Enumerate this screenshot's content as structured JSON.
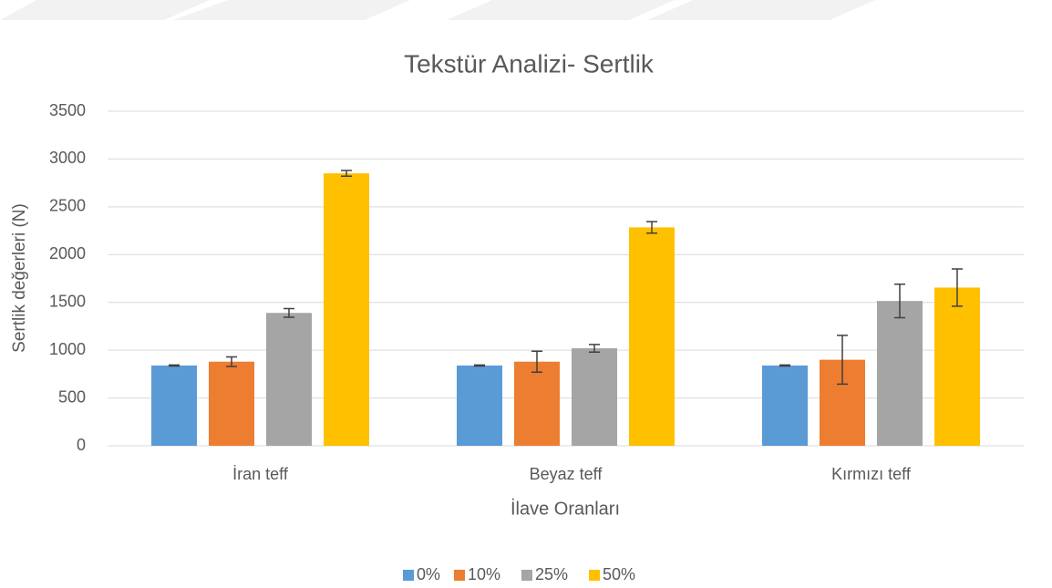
{
  "chart_data": {
    "type": "bar",
    "title": "Tekstür Analizi- Sertlik",
    "x_label": "İlave Oranları",
    "y_label": "Sertlik değerleri (N)",
    "categories": [
      "İran teff",
      "Beyaz teff",
      "Kırmızı teff"
    ],
    "series": [
      {
        "name": "0%",
        "color": "#5b9bd5",
        "values": [
          840,
          840,
          840
        ],
        "errors": [
          5,
          5,
          5
        ]
      },
      {
        "name": "10%",
        "color": "#ed7d31",
        "values": [
          880,
          880,
          900
        ],
        "errors": [
          50,
          110,
          255
        ]
      },
      {
        "name": "25%",
        "color": "#a5a5a5",
        "values": [
          1390,
          1020,
          1515
        ],
        "errors": [
          45,
          40,
          175
        ]
      },
      {
        "name": "50%",
        "color": "#ffc000",
        "values": [
          2850,
          2285,
          1655
        ],
        "errors": [
          30,
          60,
          195
        ]
      }
    ],
    "ylim": [
      0,
      3500
    ],
    "yticks": [
      0,
      500,
      1000,
      1500,
      2000,
      2500,
      3000,
      3500
    ],
    "grid": true,
    "legend": "bottom"
  }
}
